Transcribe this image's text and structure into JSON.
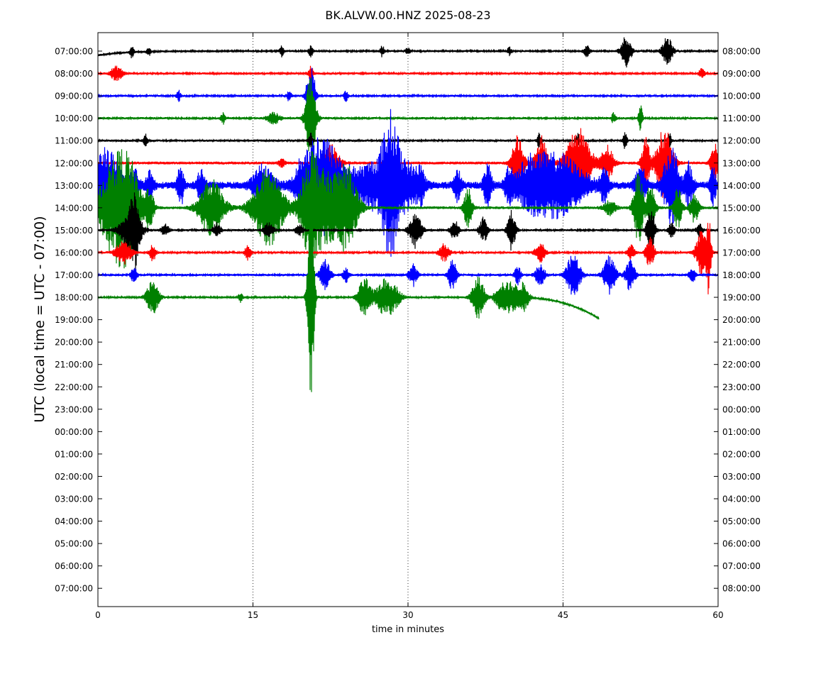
{
  "chart_data": {
    "type": "line",
    "title": "BK.ALVW.00.HNZ 2025-08-23",
    "xlabel": "time in minutes",
    "ylabel": "UTC (local time = UTC - 07:00)",
    "xlim": [
      0,
      60
    ],
    "x_ticks": [
      0,
      15,
      30,
      45,
      60
    ],
    "grid": "vertical dotted at 15, 30, 45",
    "left_tick_labels": [
      "07:00:00",
      "08:00:00",
      "09:00:00",
      "10:00:00",
      "11:00:00",
      "12:00:00",
      "13:00:00",
      "14:00:00",
      "15:00:00",
      "16:00:00",
      "17:00:00",
      "18:00:00",
      "19:00:00",
      "20:00:00",
      "21:00:00",
      "22:00:00",
      "23:00:00",
      "00:00:00",
      "01:00:00",
      "02:00:00",
      "03:00:00",
      "04:00:00",
      "05:00:00",
      "06:00:00",
      "07:00:00"
    ],
    "right_tick_labels": [
      "08:00:00",
      "09:00:00",
      "10:00:00",
      "11:00:00",
      "12:00:00",
      "13:00:00",
      "14:00:00",
      "15:00:00",
      "16:00:00",
      "17:00:00",
      "18:00:00",
      "19:00:00",
      "20:00:00",
      "21:00:00",
      "22:00:00",
      "23:00:00",
      "00:00:00",
      "01:00:00",
      "02:00:00",
      "03:00:00",
      "04:00:00",
      "05:00:00",
      "06:00:00",
      "07:00:00",
      "08:00:00"
    ],
    "color_cycle": [
      "#000000",
      "#ff0000",
      "#0000ff",
      "#008000"
    ],
    "traces": [
      {
        "row": 0,
        "end": 60,
        "noise": 1.5,
        "drift": "start-low",
        "events": [
          [
            51.1,
            22,
            0.5
          ],
          [
            55.1,
            20,
            0.5
          ],
          [
            20.6,
            8,
            0.2
          ],
          [
            3.3,
            8,
            0.2
          ],
          [
            4.9,
            6,
            0.2
          ],
          [
            17.8,
            8,
            0.2
          ],
          [
            27.5,
            8,
            0.2
          ],
          [
            30.0,
            6,
            0.2
          ],
          [
            39.8,
            6,
            0.2
          ],
          [
            47.3,
            8,
            0.3
          ]
        ]
      },
      {
        "row": 1,
        "end": 60,
        "noise": 1.5,
        "events": [
          [
            1.8,
            10,
            0.6
          ],
          [
            20.6,
            12,
            0.2
          ],
          [
            58.4,
            6,
            0.3
          ]
        ]
      },
      {
        "row": 2,
        "end": 60,
        "noise": 1.5,
        "events": [
          [
            20.6,
            50,
            0.4
          ],
          [
            7.8,
            8,
            0.2
          ],
          [
            18.5,
            8,
            0.2
          ],
          [
            24.0,
            8,
            0.2
          ]
        ]
      },
      {
        "row": 3,
        "end": 60,
        "noise": 1.6,
        "events": [
          [
            20.6,
            60,
            0.5
          ],
          [
            17.0,
            8,
            0.6
          ],
          [
            52.5,
            18,
            0.2
          ],
          [
            49.9,
            8,
            0.2
          ],
          [
            12.1,
            8,
            0.2
          ]
        ]
      },
      {
        "row": 4,
        "end": 60,
        "noise": 1.6,
        "events": [
          [
            4.6,
            10,
            0.2
          ],
          [
            20.6,
            10,
            0.2
          ],
          [
            51.0,
            12,
            0.2
          ],
          [
            46.4,
            10,
            0.2
          ],
          [
            42.7,
            10,
            0.2
          ],
          [
            55.3,
            10,
            0.2
          ]
        ]
      },
      {
        "row": 5,
        "end": 60,
        "noise": 2,
        "events": [
          [
            22.6,
            25,
            0.8
          ],
          [
            40.6,
            38,
            0.6
          ],
          [
            42.9,
            40,
            0.6
          ],
          [
            46.5,
            50,
            1.2
          ],
          [
            49.3,
            25,
            0.6
          ],
          [
            53.0,
            35,
            0.4
          ],
          [
            54.8,
            50,
            0.8
          ],
          [
            59.7,
            28,
            0.4
          ],
          [
            17.8,
            6,
            0.3
          ]
        ]
      },
      {
        "row": 6,
        "end": 60,
        "noise": 5,
        "events": [
          [
            0.5,
            42,
            0.8
          ],
          [
            1.5,
            30,
            1.0
          ],
          [
            3.5,
            22,
            0.5
          ],
          [
            5.0,
            20,
            0.4
          ],
          [
            8.0,
            30,
            0.3
          ],
          [
            10.0,
            22,
            0.4
          ],
          [
            16.0,
            28,
            1.0
          ],
          [
            19.8,
            18,
            0.6
          ],
          [
            21.2,
            50,
            1.6
          ],
          [
            22.9,
            32,
            2.5
          ],
          [
            27.0,
            30,
            1.6
          ],
          [
            28.3,
            70,
            0.8
          ],
          [
            29.5,
            35,
            1.5
          ],
          [
            31.2,
            22,
            0.4
          ],
          [
            34.8,
            22,
            0.4
          ],
          [
            37.7,
            28,
            0.4
          ],
          [
            39.8,
            24,
            0.4
          ],
          [
            41.8,
            30,
            1.5
          ],
          [
            44.6,
            42,
            2.5
          ],
          [
            49.0,
            24,
            0.4
          ],
          [
            52.5,
            30,
            0.5
          ],
          [
            55.5,
            55,
            0.8
          ],
          [
            57.2,
            30,
            0.4
          ],
          [
            59.5,
            25,
            0.3
          ]
        ]
      },
      {
        "row": 7,
        "end": 60,
        "noise": 2,
        "events": [
          [
            1.5,
            60,
            1.5
          ],
          [
            3.0,
            55,
            1.2
          ],
          [
            5.0,
            30,
            0.4
          ],
          [
            11.0,
            40,
            1.2
          ],
          [
            16.5,
            55,
            1.5
          ],
          [
            20.6,
            75,
            1.0
          ],
          [
            22.5,
            45,
            1.5
          ],
          [
            24.2,
            48,
            1.0
          ],
          [
            35.8,
            28,
            0.4
          ],
          [
            49.5,
            10,
            0.6
          ],
          [
            52.3,
            50,
            0.5
          ],
          [
            53.5,
            38,
            0.4
          ],
          [
            56.1,
            30,
            0.4
          ],
          [
            57.7,
            22,
            0.4
          ]
        ]
      },
      {
        "row": 8,
        "end": 60,
        "noise": 1.5,
        "events": [
          [
            3.2,
            30,
            1.0
          ],
          [
            3.6,
            35,
            0.4
          ],
          [
            6.5,
            8,
            0.4
          ],
          [
            11.5,
            10,
            0.4
          ],
          [
            16.5,
            10,
            0.5
          ],
          [
            19.5,
            8,
            0.4
          ],
          [
            30.7,
            25,
            0.6
          ],
          [
            34.5,
            14,
            0.4
          ],
          [
            37.3,
            18,
            0.4
          ],
          [
            40.0,
            28,
            0.4
          ],
          [
            53.5,
            32,
            0.4
          ],
          [
            55.5,
            10,
            0.3
          ],
          [
            58.2,
            10,
            0.3
          ]
        ]
      },
      {
        "row": 9,
        "end": 60,
        "noise": 1.5,
        "events": [
          [
            2.5,
            16,
            0.8
          ],
          [
            5.3,
            12,
            0.3
          ],
          [
            14.5,
            10,
            0.3
          ],
          [
            33.5,
            12,
            0.5
          ],
          [
            42.8,
            14,
            0.5
          ],
          [
            51.6,
            10,
            0.4
          ],
          [
            53.4,
            24,
            0.4
          ],
          [
            58.5,
            35,
            0.6
          ],
          [
            59.1,
            55,
            0.2
          ]
        ]
      },
      {
        "row": 10,
        "end": 60,
        "noise": 1.5,
        "events": [
          [
            3.5,
            12,
            0.3
          ],
          [
            22.0,
            22,
            0.5
          ],
          [
            24.0,
            10,
            0.3
          ],
          [
            30.5,
            16,
            0.4
          ],
          [
            34.3,
            22,
            0.4
          ],
          [
            40.6,
            14,
            0.3
          ],
          [
            42.8,
            14,
            0.5
          ],
          [
            46.0,
            30,
            0.7
          ],
          [
            49.5,
            28,
            0.6
          ],
          [
            51.5,
            22,
            0.5
          ],
          [
            57.5,
            12,
            0.3
          ]
        ]
      },
      {
        "row": 11,
        "end": 48.5,
        "noise": 1.5,
        "drift": "end-low",
        "events": [
          [
            5.3,
            24,
            0.6
          ],
          [
            20.6,
            180,
            0.3
          ],
          [
            25.8,
            28,
            0.6
          ],
          [
            27.5,
            20,
            0.8
          ],
          [
            28.5,
            18,
            0.8
          ],
          [
            36.8,
            30,
            0.6
          ],
          [
            39.0,
            20,
            0.6
          ],
          [
            40.0,
            20,
            0.6
          ],
          [
            41.1,
            20,
            0.6
          ],
          [
            13.8,
            8,
            0.2
          ]
        ]
      }
    ]
  }
}
